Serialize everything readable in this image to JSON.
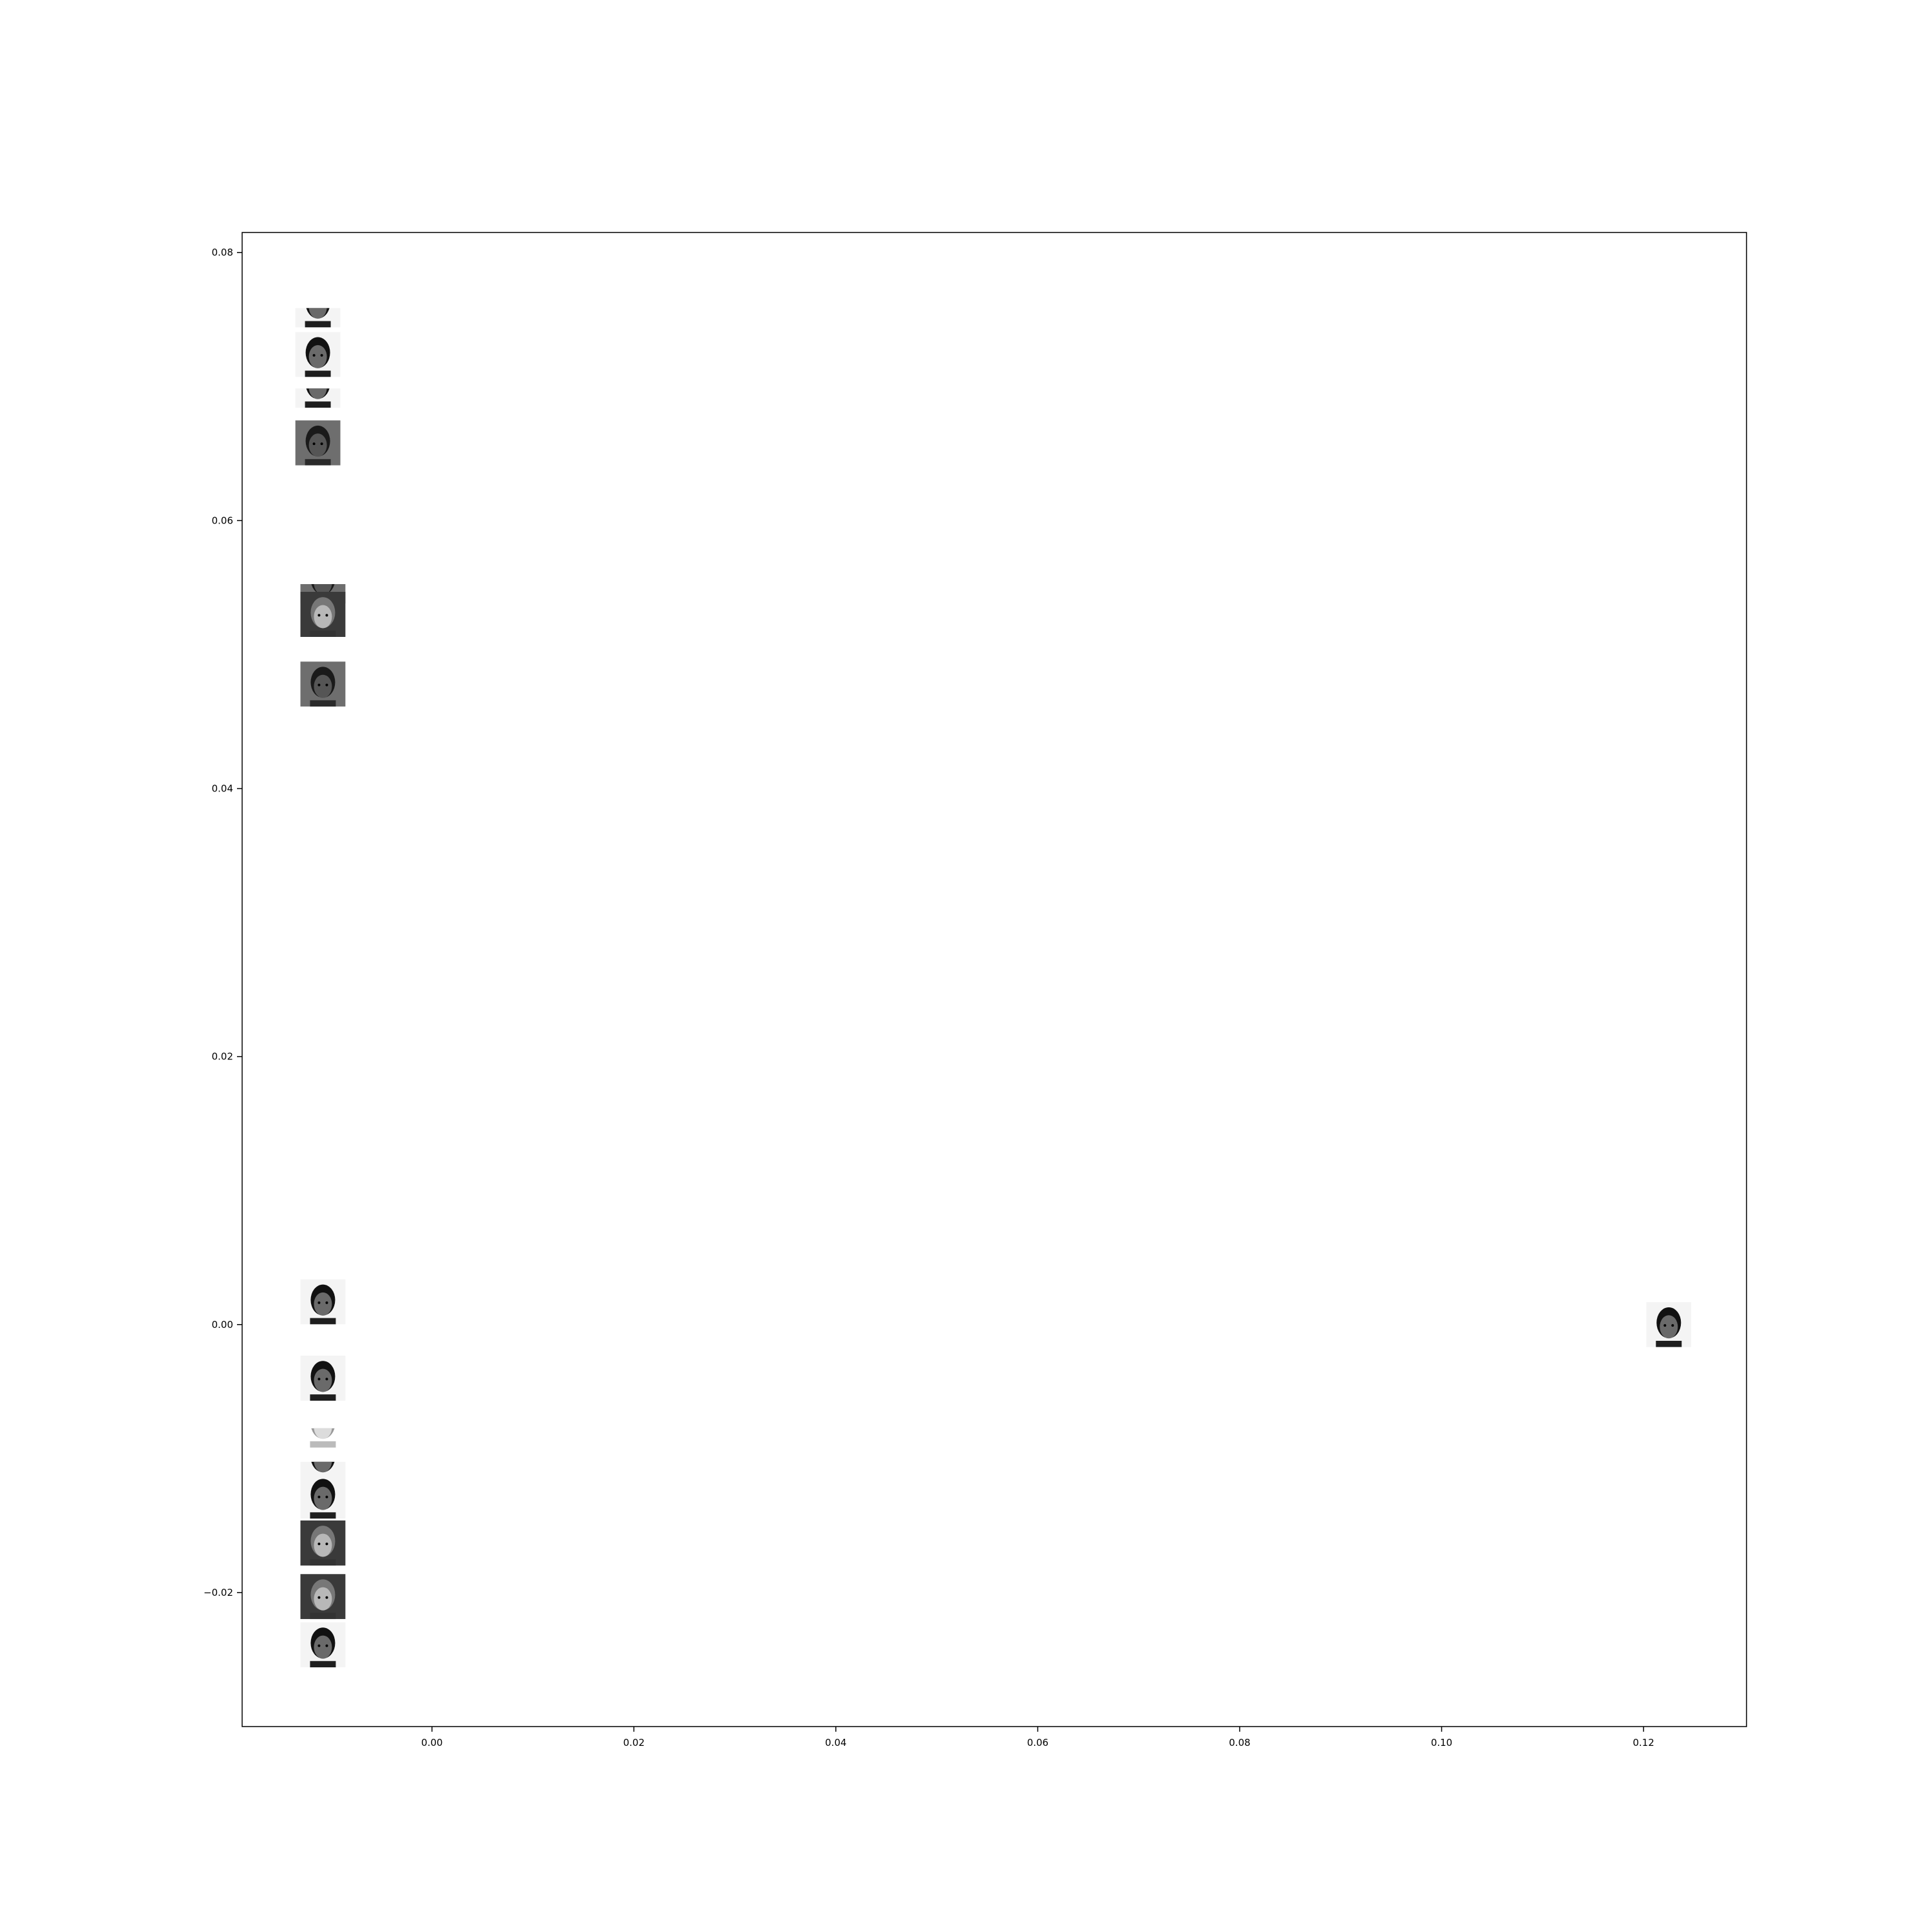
{
  "chart_data": {
    "type": "scatter",
    "title": "",
    "xlabel": "",
    "ylabel": "",
    "xlim": [
      -0.0188,
      0.1302
    ],
    "ylim": [
      -0.03,
      0.0815
    ],
    "grid": false,
    "legend": "none",
    "x_ticks": [
      {
        "value": 0.0,
        "label": "0.00"
      },
      {
        "value": 0.02,
        "label": "0.02"
      },
      {
        "value": 0.04,
        "label": "0.04"
      },
      {
        "value": 0.06,
        "label": "0.06"
      },
      {
        "value": 0.08,
        "label": "0.08"
      },
      {
        "value": 0.1,
        "label": "0.10"
      },
      {
        "value": 0.12,
        "label": "0.12"
      }
    ],
    "y_ticks": [
      {
        "value": -0.02,
        "label": "−0.02"
      },
      {
        "value": 0.0,
        "label": "0.00"
      },
      {
        "value": 0.02,
        "label": "0.02"
      },
      {
        "value": 0.04,
        "label": "0.04"
      },
      {
        "value": 0.06,
        "label": "0.06"
      },
      {
        "value": 0.08,
        "label": "0.08"
      }
    ],
    "marker": "face-thumbnail",
    "points": [
      {
        "x": -0.0113,
        "y": 0.0761,
        "tone": "dark",
        "crop": "top"
      },
      {
        "x": -0.0113,
        "y": 0.0724,
        "tone": "dark",
        "crop": "full"
      },
      {
        "x": -0.0113,
        "y": 0.0701,
        "tone": "dark",
        "crop": "top"
      },
      {
        "x": -0.0113,
        "y": 0.0658,
        "tone": "mid",
        "crop": "full"
      },
      {
        "x": -0.0108,
        "y": 0.0555,
        "tone": "mid",
        "crop": "top"
      },
      {
        "x": -0.0108,
        "y": 0.053,
        "tone": "light",
        "crop": "full"
      },
      {
        "x": -0.0108,
        "y": 0.0478,
        "tone": "mid",
        "crop": "full"
      },
      {
        "x": -0.0108,
        "y": 0.0017,
        "tone": "dark",
        "crop": "full"
      },
      {
        "x": -0.0108,
        "y": -0.004,
        "tone": "dark",
        "crop": "full"
      },
      {
        "x": -0.0108,
        "y": -0.0075,
        "tone": "faint",
        "crop": "top"
      },
      {
        "x": -0.0108,
        "y": -0.01,
        "tone": "dark",
        "crop": "top"
      },
      {
        "x": -0.0108,
        "y": -0.0128,
        "tone": "dark",
        "crop": "full"
      },
      {
        "x": -0.0108,
        "y": -0.0163,
        "tone": "light",
        "crop": "full"
      },
      {
        "x": -0.0108,
        "y": -0.0203,
        "tone": "light",
        "crop": "full"
      },
      {
        "x": -0.0108,
        "y": -0.0239,
        "tone": "dark",
        "crop": "full"
      },
      {
        "x": 0.1225,
        "y": -0.0,
        "tone": "dark",
        "crop": "full"
      }
    ],
    "colors": {
      "axes": "#000000",
      "background": "#ffffff"
    }
  }
}
